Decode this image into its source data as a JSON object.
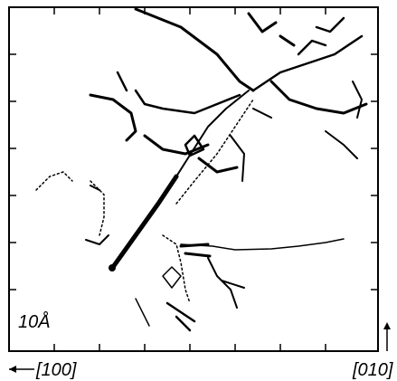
{
  "scale_label": "10Å",
  "axes": {
    "x_direction": "[100]",
    "y_direction": "[010]"
  }
}
